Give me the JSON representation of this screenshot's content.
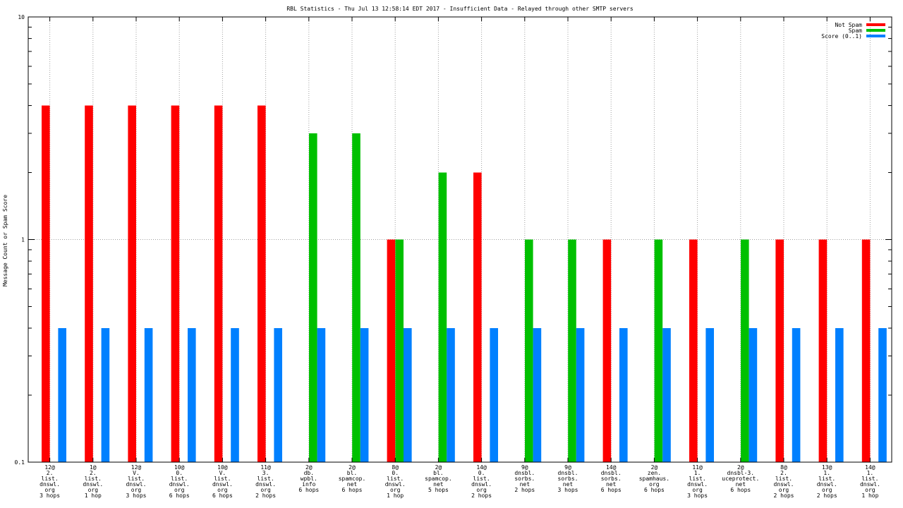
{
  "chart_data": {
    "type": "bar",
    "title": "RBL Statistics - Thu Jul 13 12:58:14 EDT 2017 - Insufficient Data - Relayed through other SMTP servers",
    "ylabel": "Message Count or Spam Score",
    "xlabel": "",
    "yscale": "log",
    "ylim": [
      0.1,
      10
    ],
    "yticks": [
      "10",
      "1",
      "0.1"
    ],
    "grid": true,
    "legend_position": "top-right",
    "categories": [
      [
        "12@",
        "2.",
        "list.",
        "dnswl.",
        "org",
        "3 hops"
      ],
      [
        "1@",
        "2.",
        "list.",
        "dnswl.",
        "org",
        "1 hop"
      ],
      [
        "12@",
        "V.",
        "list.",
        "dnswl.",
        "org",
        "3 hops"
      ],
      [
        "10@",
        "0.",
        "list.",
        "dnswl.",
        "org",
        "6 hops"
      ],
      [
        "10@",
        "V.",
        "list.",
        "dnswl.",
        "org",
        "6 hops"
      ],
      [
        "11@",
        "3.",
        "list.",
        "dnswl.",
        "org",
        "2 hops"
      ],
      [
        "2@",
        "db.",
        "wpbl.",
        "info",
        "6 hops"
      ],
      [
        "2@",
        "bl.",
        "spamcop.",
        "net",
        "6 hops"
      ],
      [
        "8@",
        "0.",
        "list.",
        "dnswl.",
        "org",
        "1 hop"
      ],
      [
        "2@",
        "bl.",
        "spamcop.",
        "net",
        "5 hops"
      ],
      [
        "14@",
        "0.",
        "list.",
        "dnswl.",
        "org",
        "2 hops"
      ],
      [
        "9@",
        "dnsbl.",
        "sorbs.",
        "net",
        "2 hops"
      ],
      [
        "9@",
        "dnsbl.",
        "sorbs.",
        "net",
        "3 hops"
      ],
      [
        "14@",
        "dnsbl.",
        "sorbs.",
        "net",
        "6 hops"
      ],
      [
        "2@",
        "zen.",
        "spamhaus.",
        "org",
        "6 hops"
      ],
      [
        "11@",
        "1.",
        "list.",
        "dnswl.",
        "org",
        "3 hops"
      ],
      [
        "2@",
        "dnsbl-3.",
        "uceprotect.",
        "net",
        "6 hops"
      ],
      [
        "8@",
        "2.",
        "list.",
        "dnswl.",
        "org",
        "2 hops"
      ],
      [
        "13@",
        "1.",
        "list.",
        "dnswl.",
        "org",
        "2 hops"
      ],
      [
        "14@",
        "1.",
        "list.",
        "dnswl.",
        "org",
        "1 hop"
      ]
    ],
    "series": [
      {
        "name": "Not Spam",
        "color": "#ff0000",
        "values": [
          4,
          4,
          4,
          4,
          4,
          4,
          null,
          null,
          1,
          null,
          2,
          null,
          null,
          1,
          null,
          1,
          null,
          1,
          1,
          1
        ]
      },
      {
        "name": "Spam",
        "color": "#00c000",
        "values": [
          null,
          null,
          null,
          null,
          null,
          null,
          3,
          3,
          1,
          2,
          null,
          1,
          1,
          null,
          1,
          null,
          1,
          null,
          null,
          null
        ]
      },
      {
        "name": "Score (0..1)",
        "color": "#0080ff",
        "values": [
          0.4,
          0.4,
          0.4,
          0.4,
          0.4,
          0.4,
          0.4,
          0.4,
          0.4,
          0.4,
          0.4,
          0.4,
          0.4,
          0.4,
          0.4,
          0.4,
          0.4,
          0.4,
          0.4,
          0.4
        ]
      }
    ]
  }
}
